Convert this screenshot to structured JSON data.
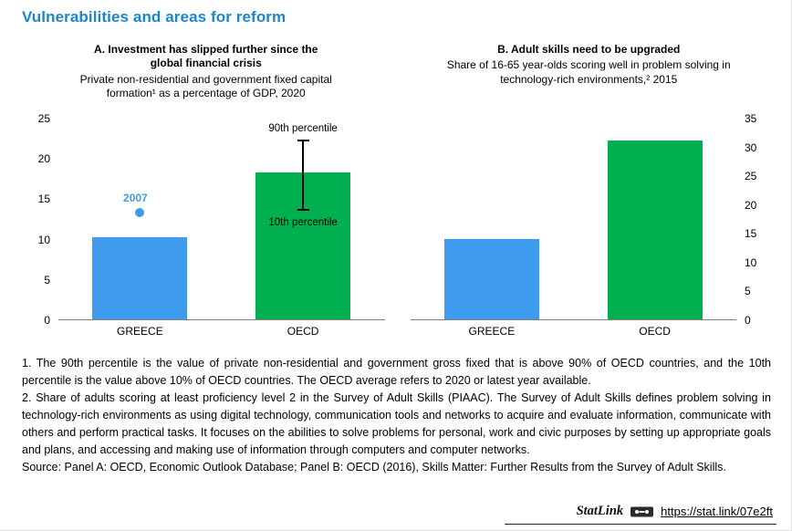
{
  "page": {
    "title": "Vulnerabilities and areas for reform"
  },
  "colors": {
    "title_blue": "#1d86c8",
    "greece_bar_blue": "#3f9bee",
    "oecd_bar_green": "#00b050",
    "error_bar_black": "#000000"
  },
  "chart_data": [
    {
      "type": "bar",
      "panel": "A",
      "title": "A. Investment has slipped further since the global financial crisis",
      "subtitle": "Private non-residential and government fixed capital formation¹ as a percentage of GDP, 2020",
      "categories": [
        "GREECE",
        "OECD"
      ],
      "values": [
        10.2,
        18.2
      ],
      "bar_colors": [
        "#3f9bee",
        "#00b050"
      ],
      "ylim": [
        0,
        25
      ],
      "ytick_step": 5,
      "yaxis_side": "left",
      "grid": false,
      "marker": {
        "label": "2007",
        "category_index": 0,
        "value": 13.2,
        "color": "#3f9bee"
      },
      "error_bar": {
        "category_index": 1,
        "low": 13.6,
        "high": 22.2,
        "high_label": "90th percentile",
        "low_label": "10th percentile"
      }
    },
    {
      "type": "bar",
      "panel": "B",
      "title": "B. Adult skills need to be upgraded",
      "subtitle": "Share of 16-65 year-olds scoring well in problem solving in technology-rich environments,² 2015",
      "categories": [
        "GREECE",
        "OECD"
      ],
      "values": [
        14,
        31
      ],
      "bar_colors": [
        "#3f9bee",
        "#00b050"
      ],
      "ylim": [
        0,
        35
      ],
      "ytick_step": 5,
      "yaxis_side": "right",
      "grid": false
    }
  ],
  "notes": {
    "note1": "1. The 90th percentile is the value of private non-residential and government gross fixed that is above 90% of OECD countries, and the 10th percentile is the value above 10% of OECD countries. The OECD average refers to 2020 or latest year available.",
    "note2": "2. Share of adults scoring at least proficiency level 2 in the Survey of Adult Skills (PIAAC). The Survey of Adult Skills defines problem solving in technology-rich environments as using digital technology, communication tools and networks to acquire and evaluate information, communicate with others and perform practical tasks. It focuses on the abilities to solve problems for personal, work and civic purposes by setting up appropriate goals and plans, and accessing and making use of information through computers and computer networks.",
    "source": "Source: Panel A: OECD, Economic Outlook Database; Panel B: OECD (2016), Skills Matter: Further Results from the Survey of Adult Skills."
  },
  "statlink": {
    "label": "StatLink",
    "url": "https://stat.link/07e2ft"
  }
}
